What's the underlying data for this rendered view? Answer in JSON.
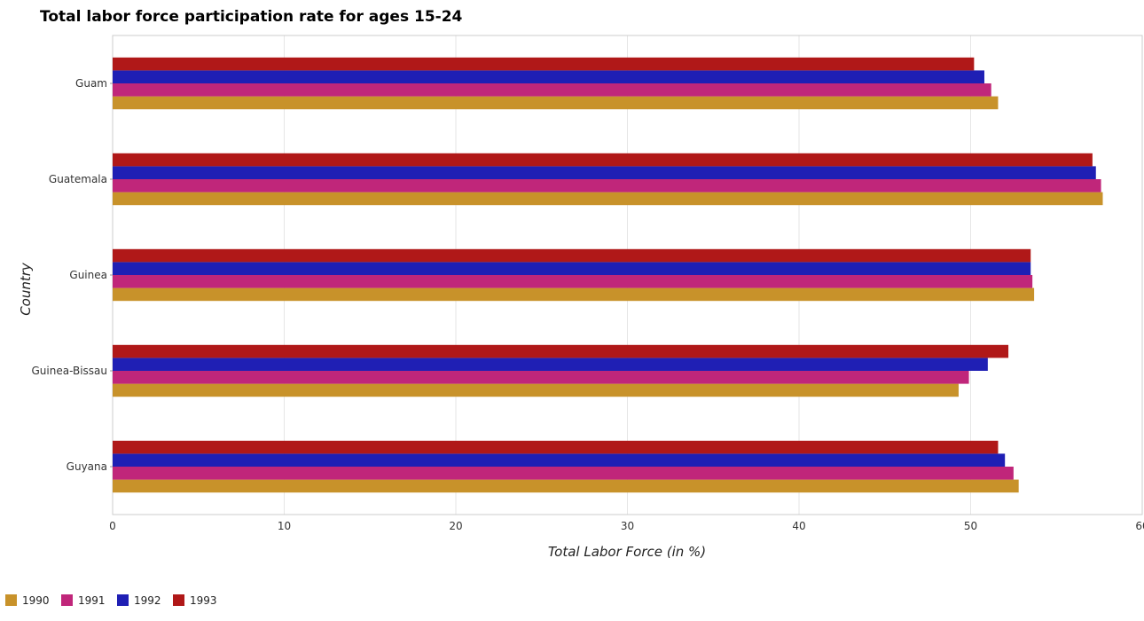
{
  "chart_data": {
    "type": "bar",
    "orientation": "horizontal",
    "title": "Total labor force participation rate for ages 15-24",
    "xlabel": "Total Labor Force (in %)",
    "ylabel": "Country",
    "xlim": [
      0,
      60
    ],
    "xticks": [
      0,
      10,
      20,
      30,
      40,
      50,
      60
    ],
    "grid": true,
    "legend_position": "bottom-left",
    "categories": [
      "Guam",
      "Guatemala",
      "Guinea",
      "Guinea-Bissau",
      "Guyana"
    ],
    "series": [
      {
        "name": "1990",
        "color": "#c8922a",
        "values": [
          51.6,
          57.7,
          53.7,
          49.3,
          52.8
        ]
      },
      {
        "name": "1991",
        "color": "#c0267a",
        "values": [
          51.2,
          57.6,
          53.6,
          49.9,
          52.5
        ]
      },
      {
        "name": "1992",
        "color": "#1f1fb4",
        "values": [
          50.8,
          57.3,
          53.5,
          51.0,
          52.0
        ]
      },
      {
        "name": "1993",
        "color": "#b01818",
        "values": [
          50.2,
          57.1,
          53.5,
          52.2,
          51.6
        ]
      }
    ]
  }
}
